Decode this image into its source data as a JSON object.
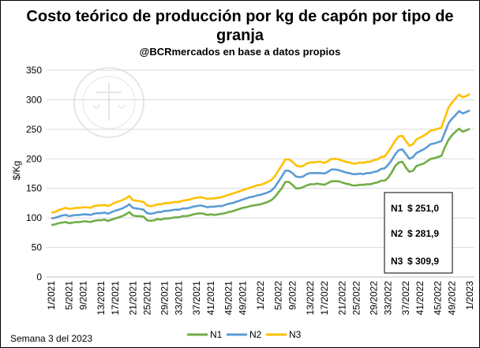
{
  "chart_data": {
    "type": "line",
    "title_line1": "Costo teórico de producción por kg de capón por tipo de",
    "title_line2": "granja",
    "subtitle": "@BCRmercados en base a datos propios",
    "ylabel": "$/Kg",
    "xlabel": "",
    "ylim": [
      0,
      350
    ],
    "yticks": [
      0,
      50,
      100,
      150,
      200,
      250,
      300,
      350
    ],
    "xtick_labels": [
      "1/2021",
      "5/2021",
      "9/2021",
      "13/2021",
      "17/2021",
      "21/2021",
      "25/2021",
      "29/2021",
      "33/2021",
      "37/2021",
      "41/2021",
      "45/2021",
      "49/2021",
      "1/2022",
      "5/2022",
      "9/2022",
      "13/2022",
      "17/2022",
      "21/2022",
      "25/2022",
      "29/2022",
      "33/2022",
      "37/2022",
      "41/2022",
      "45/2022",
      "49/2022",
      "1/2023"
    ],
    "grid": true,
    "legend_position": "bottom",
    "colors": {
      "N1": "#70AD47",
      "N2": "#5B9BD5",
      "N3": "#FFC000"
    },
    "series": [
      {
        "name": "N1",
        "values": [
          88,
          89,
          91,
          92,
          93,
          91,
          92,
          93,
          93,
          94,
          94,
          93,
          95,
          96,
          96,
          97,
          95,
          97,
          99,
          101,
          103,
          106,
          110,
          104,
          103,
          103,
          102,
          96,
          95,
          96,
          98,
          97,
          99,
          99,
          100,
          101,
          101,
          103,
          103,
          104,
          106,
          107,
          108,
          107,
          105,
          106,
          105,
          106,
          107,
          108,
          110,
          111,
          113,
          115,
          117,
          118,
          120,
          121,
          122,
          123,
          125,
          127,
          130,
          135,
          143,
          150,
          161,
          161,
          156,
          150,
          150,
          152,
          155,
          157,
          157,
          158,
          157,
          156,
          159,
          162,
          162,
          162,
          160,
          158,
          157,
          155,
          155,
          156,
          156,
          157,
          157,
          159,
          160,
          163,
          163,
          168,
          177,
          188,
          194,
          195,
          185,
          178,
          180,
          188,
          190,
          192,
          196,
          200,
          201,
          203,
          205,
          220,
          232,
          240,
          246,
          251,
          246,
          248,
          251
        ]
      },
      {
        "name": "N2",
        "values": [
          99,
          100,
          102,
          104,
          105,
          103,
          104,
          105,
          105,
          106,
          106,
          105,
          107,
          108,
          108,
          109,
          107,
          110,
          112,
          114,
          116,
          119,
          123,
          117,
          116,
          115,
          114,
          108,
          107,
          108,
          110,
          110,
          112,
          112,
          113,
          114,
          114,
          116,
          116,
          117,
          119,
          120,
          121,
          120,
          118,
          119,
          119,
          120,
          120,
          122,
          124,
          125,
          127,
          129,
          131,
          133,
          135,
          136,
          138,
          139,
          141,
          143,
          146,
          152,
          161,
          170,
          180,
          180,
          176,
          170,
          169,
          170,
          174,
          176,
          176,
          176,
          176,
          175,
          178,
          182,
          182,
          181,
          179,
          177,
          176,
          174,
          174,
          175,
          174,
          176,
          176,
          178,
          179,
          183,
          184,
          190,
          198,
          208,
          215,
          216,
          208,
          200,
          203,
          210,
          213,
          216,
          220,
          225,
          226,
          228,
          230,
          245,
          260,
          268,
          274,
          281,
          277,
          279,
          282
        ]
      },
      {
        "name": "N3",
        "values": [
          109,
          110,
          113,
          115,
          117,
          115,
          116,
          117,
          117,
          118,
          118,
          117,
          120,
          121,
          121,
          122,
          120,
          123,
          126,
          128,
          130,
          133,
          137,
          130,
          129,
          128,
          127,
          121,
          120,
          121,
          123,
          123,
          125,
          125,
          126,
          127,
          127,
          129,
          130,
          131,
          133,
          134,
          135,
          134,
          132,
          133,
          133,
          134,
          135,
          137,
          139,
          141,
          143,
          145,
          147,
          149,
          151,
          153,
          155,
          156,
          158,
          161,
          164,
          170,
          180,
          189,
          199,
          199,
          195,
          189,
          187,
          188,
          192,
          194,
          194,
          195,
          195,
          193,
          196,
          200,
          200,
          199,
          197,
          195,
          194,
          192,
          192,
          194,
          193,
          195,
          195,
          198,
          199,
          203,
          204,
          212,
          221,
          231,
          238,
          239,
          230,
          222,
          225,
          233,
          236,
          239,
          243,
          248,
          249,
          251,
          253,
          270,
          287,
          295,
          302,
          309,
          304,
          306,
          310
        ]
      }
    ],
    "annotation_box": {
      "rows": [
        {
          "label": "N1",
          "value": "$ 251,0"
        },
        {
          "label": "N2",
          "value": "$ 281,9"
        },
        {
          "label": "N3",
          "value": "$ 309,9"
        }
      ]
    }
  },
  "footer": {
    "note": "Semana 3 del 2023"
  }
}
